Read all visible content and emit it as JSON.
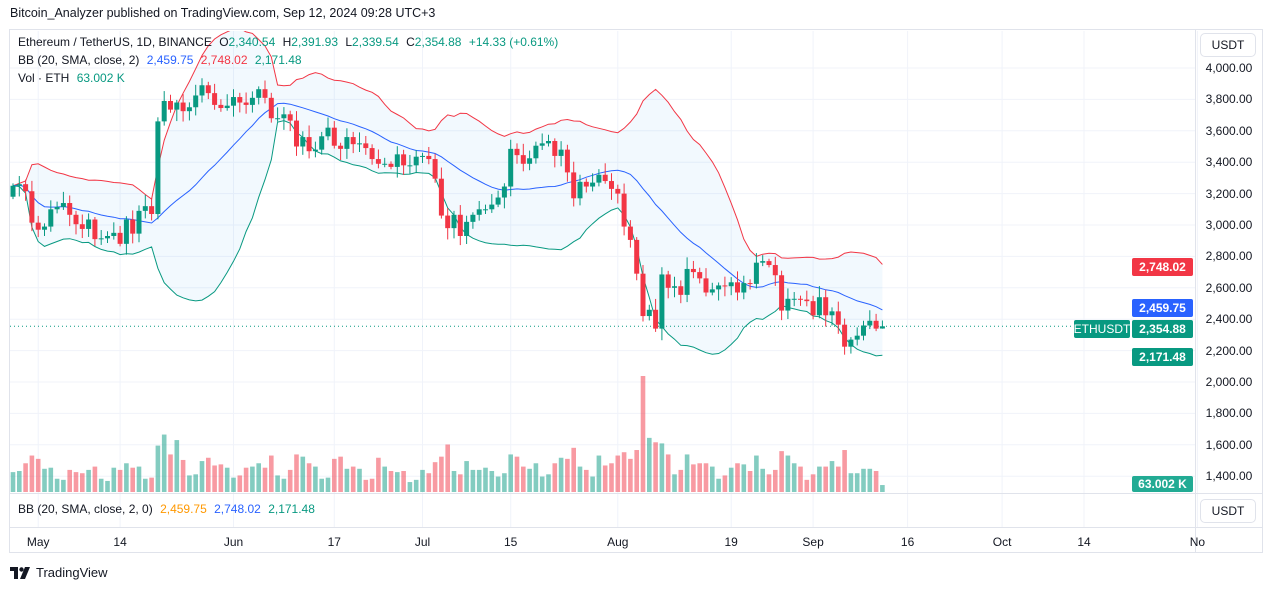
{
  "header": {
    "published": "Bitcoin_Analyzer published on TradingView.com, Sep 12, 2024 09:28 UTC+3"
  },
  "legend": {
    "symbol": "Ethereum / TetherUS, 1D, BINANCE",
    "o_label": "O",
    "o": "2,340.54",
    "h_label": "H",
    "h": "2,391.93",
    "l_label": "L",
    "l": "2,339.54",
    "c_label": "C",
    "c": "2,354.88",
    "change": "+14.33 (+0.61%)",
    "bb_label": "BB (20, SMA, close, 2)",
    "bb_basis": "2,459.75",
    "bb_upper": "2,748.02",
    "bb_lower": "2,171.48",
    "vol_label": "Vol · ETH",
    "vol": "63.002 K"
  },
  "pane2": {
    "label": "BB (20, SMA, close, 2, 0)",
    "basis": "2,459.75",
    "upper": "2,748.02",
    "lower": "2,171.48",
    "unit": "USDT"
  },
  "axis": {
    "unit": "USDT",
    "ticks": [
      "4,000.00",
      "3,800.00",
      "3,600.00",
      "3,400.00",
      "3,200.00",
      "3,000.00",
      "2,800.00",
      "2,600.00",
      "2,400.00",
      "2,200.00",
      "2,000.00",
      "1,800.00",
      "1,600.00",
      "1,400.00"
    ],
    "labels": {
      "upper": "2,748.02",
      "basis": "2,459.75",
      "last": "2,354.88",
      "symbol": "ETHUSDT",
      "lower": "2,171.48",
      "volume": "63.002 K"
    }
  },
  "colors": {
    "up": "#089981",
    "down": "#f23645",
    "basis": "#2962ff",
    "upper": "#f23645",
    "lower": "#089981",
    "fill": "#2196f3"
  },
  "logo": "TradingView",
  "chart_data": {
    "type": "candlestick",
    "symbol": "ETHUSDT",
    "interval": "1D",
    "ylim": [
      1400,
      4000
    ],
    "indicators": [
      "BB 20 SMA close 2",
      "Volume"
    ],
    "x_ticks": [
      {
        "label": "May",
        "date": "2024-05-01"
      },
      {
        "label": "14",
        "date": "2024-05-14"
      },
      {
        "label": "Jun",
        "date": "2024-06-01"
      },
      {
        "label": "17",
        "date": "2024-06-17"
      },
      {
        "label": "Jul",
        "date": "2024-07-01"
      },
      {
        "label": "15",
        "date": "2024-07-15"
      },
      {
        "label": "Aug",
        "date": "2024-08-01"
      },
      {
        "label": "19",
        "date": "2024-08-19"
      },
      {
        "label": "Sep",
        "date": "2024-09-01"
      },
      {
        "label": "16",
        "date": "2024-09-16"
      },
      {
        "label": "Oct",
        "date": "2024-10-01"
      },
      {
        "label": "14",
        "date": "2024-10-14"
      },
      {
        "label": "No",
        "date": "2024-11-01"
      }
    ],
    "first_open": 3180,
    "last": {
      "open": 2340.54,
      "high": 2391.93,
      "low": 2339.54,
      "close": 2354.88,
      "volume_k": 63.002,
      "bb_basis": 2459.75,
      "bb_upper": 2748.02,
      "bb_lower": 2171.48
    },
    "columns": [
      "date",
      "close",
      "volume_k"
    ],
    "candles": [
      [
        "2024-04-27",
        3250,
        180
      ],
      [
        "2024-04-28",
        3260,
        190
      ],
      [
        "2024-04-29",
        3215,
        260
      ],
      [
        "2024-04-30",
        3015,
        330
      ],
      [
        "2024-05-01",
        2970,
        300
      ],
      [
        "2024-05-02",
        2990,
        210
      ],
      [
        "2024-05-03",
        3100,
        220
      ],
      [
        "2024-05-04",
        3115,
        120
      ],
      [
        "2024-05-05",
        3140,
        110
      ],
      [
        "2024-05-06",
        3065,
        200
      ],
      [
        "2024-05-07",
        3005,
        180
      ],
      [
        "2024-05-08",
        2975,
        170
      ],
      [
        "2024-05-09",
        3035,
        200
      ],
      [
        "2024-05-10",
        2910,
        230
      ],
      [
        "2024-05-11",
        2915,
        120
      ],
      [
        "2024-05-12",
        2930,
        100
      ],
      [
        "2024-05-13",
        2950,
        220
      ],
      [
        "2024-05-14",
        2880,
        200
      ],
      [
        "2024-05-15",
        3035,
        260
      ],
      [
        "2024-05-16",
        2945,
        220
      ],
      [
        "2024-05-17",
        3090,
        230
      ],
      [
        "2024-05-18",
        3120,
        120
      ],
      [
        "2024-05-19",
        3070,
        130
      ],
      [
        "2024-05-20",
        3660,
        420
      ],
      [
        "2024-05-21",
        3790,
        520
      ],
      [
        "2024-05-22",
        3735,
        340
      ],
      [
        "2024-05-23",
        3780,
        470
      ],
      [
        "2024-05-24",
        3725,
        290
      ],
      [
        "2024-05-25",
        3750,
        150
      ],
      [
        "2024-05-26",
        3825,
        160
      ],
      [
        "2024-05-27",
        3890,
        280
      ],
      [
        "2024-05-28",
        3840,
        310
      ],
      [
        "2024-05-29",
        3765,
        240
      ],
      [
        "2024-05-30",
        3745,
        250
      ],
      [
        "2024-05-31",
        3760,
        220
      ],
      [
        "2024-06-01",
        3815,
        130
      ],
      [
        "2024-06-02",
        3780,
        150
      ],
      [
        "2024-06-03",
        3765,
        220
      ],
      [
        "2024-06-04",
        3810,
        230
      ],
      [
        "2024-06-05",
        3865,
        260
      ],
      [
        "2024-06-06",
        3810,
        220
      ],
      [
        "2024-06-07",
        3680,
        330
      ],
      [
        "2024-06-08",
        3680,
        150
      ],
      [
        "2024-06-09",
        3705,
        120
      ],
      [
        "2024-06-10",
        3665,
        200
      ],
      [
        "2024-06-11",
        3500,
        340
      ],
      [
        "2024-06-12",
        3560,
        320
      ],
      [
        "2024-06-13",
        3470,
        260
      ],
      [
        "2024-06-14",
        3480,
        230
      ],
      [
        "2024-06-15",
        3565,
        120
      ],
      [
        "2024-06-16",
        3620,
        130
      ],
      [
        "2024-06-17",
        3505,
        300
      ],
      [
        "2024-06-18",
        3485,
        320
      ],
      [
        "2024-06-19",
        3560,
        210
      ],
      [
        "2024-06-20",
        3515,
        230
      ],
      [
        "2024-06-21",
        3520,
        210
      ],
      [
        "2024-06-22",
        3490,
        110
      ],
      [
        "2024-06-23",
        3420,
        120
      ],
      [
        "2024-06-24",
        3390,
        310
      ],
      [
        "2024-06-25",
        3390,
        230
      ],
      [
        "2024-06-26",
        3370,
        190
      ],
      [
        "2024-06-27",
        3450,
        180
      ],
      [
        "2024-06-28",
        3380,
        190
      ],
      [
        "2024-06-29",
        3380,
        90
      ],
      [
        "2024-06-30",
        3435,
        110
      ],
      [
        "2024-07-01",
        3440,
        200
      ],
      [
        "2024-07-02",
        3420,
        170
      ],
      [
        "2024-07-03",
        3295,
        270
      ],
      [
        "2024-07-04",
        3060,
        320
      ],
      [
        "2024-07-05",
        2980,
        430
      ],
      [
        "2024-07-06",
        3065,
        190
      ],
      [
        "2024-07-07",
        2930,
        160
      ],
      [
        "2024-07-08",
        3020,
        280
      ],
      [
        "2024-07-09",
        3065,
        200
      ],
      [
        "2024-07-10",
        3100,
        200
      ],
      [
        "2024-07-11",
        3100,
        220
      ],
      [
        "2024-07-12",
        3130,
        190
      ],
      [
        "2024-07-13",
        3175,
        140
      ],
      [
        "2024-07-14",
        3245,
        170
      ],
      [
        "2024-07-15",
        3485,
        340
      ],
      [
        "2024-07-16",
        3445,
        320
      ],
      [
        "2024-07-17",
        3390,
        230
      ],
      [
        "2024-07-18",
        3425,
        210
      ],
      [
        "2024-07-19",
        3505,
        260
      ],
      [
        "2024-07-20",
        3520,
        140
      ],
      [
        "2024-07-21",
        3535,
        160
      ],
      [
        "2024-07-22",
        3440,
        260
      ],
      [
        "2024-07-23",
        3480,
        310
      ],
      [
        "2024-07-24",
        3335,
        300
      ],
      [
        "2024-07-25",
        3170,
        400
      ],
      [
        "2024-07-26",
        3275,
        230
      ],
      [
        "2024-07-27",
        3245,
        200
      ],
      [
        "2024-07-28",
        3270,
        140
      ],
      [
        "2024-07-29",
        3320,
        330
      ],
      [
        "2024-07-30",
        3280,
        240
      ],
      [
        "2024-07-31",
        3230,
        260
      ],
      [
        "2024-08-01",
        3200,
        330
      ],
      [
        "2024-08-02",
        2990,
        360
      ],
      [
        "2024-08-03",
        2905,
        300
      ],
      [
        "2024-08-04",
        2690,
        380
      ],
      [
        "2024-08-05",
        2420,
        1050
      ],
      [
        "2024-08-06",
        2460,
        490
      ],
      [
        "2024-08-07",
        2340,
        450
      ],
      [
        "2024-08-08",
        2685,
        440
      ],
      [
        "2024-08-09",
        2600,
        340
      ],
      [
        "2024-08-10",
        2610,
        160
      ],
      [
        "2024-08-11",
        2555,
        200
      ],
      [
        "2024-08-12",
        2720,
        340
      ],
      [
        "2024-08-13",
        2700,
        250
      ],
      [
        "2024-08-14",
        2660,
        260
      ],
      [
        "2024-08-15",
        2570,
        260
      ],
      [
        "2024-08-16",
        2590,
        230
      ],
      [
        "2024-08-17",
        2615,
        120
      ],
      [
        "2024-08-18",
        2610,
        150
      ],
      [
        "2024-08-19",
        2635,
        220
      ],
      [
        "2024-08-20",
        2570,
        260
      ],
      [
        "2024-08-21",
        2630,
        250
      ],
      [
        "2024-08-22",
        2625,
        190
      ],
      [
        "2024-08-23",
        2760,
        330
      ],
      [
        "2024-08-24",
        2770,
        210
      ],
      [
        "2024-08-25",
        2745,
        160
      ],
      [
        "2024-08-26",
        2680,
        200
      ],
      [
        "2024-08-27",
        2455,
        370
      ],
      [
        "2024-08-28",
        2530,
        330
      ],
      [
        "2024-08-29",
        2530,
        260
      ],
      [
        "2024-08-30",
        2525,
        230
      ],
      [
        "2024-08-31",
        2515,
        110
      ],
      [
        "2024-09-01",
        2425,
        160
      ],
      [
        "2024-09-02",
        2540,
        230
      ],
      [
        "2024-09-03",
        2425,
        230
      ],
      [
        "2024-09-04",
        2450,
        280
      ],
      [
        "2024-09-05",
        2365,
        230
      ],
      [
        "2024-09-06",
        2225,
        380
      ],
      [
        "2024-09-07",
        2270,
        170
      ],
      [
        "2024-09-08",
        2295,
        170
      ],
      [
        "2024-09-09",
        2360,
        210
      ],
      [
        "2024-09-10",
        2390,
        210
      ],
      [
        "2024-09-11",
        2340,
        190
      ],
      [
        "2024-09-12",
        2354.88,
        63
      ]
    ]
  }
}
